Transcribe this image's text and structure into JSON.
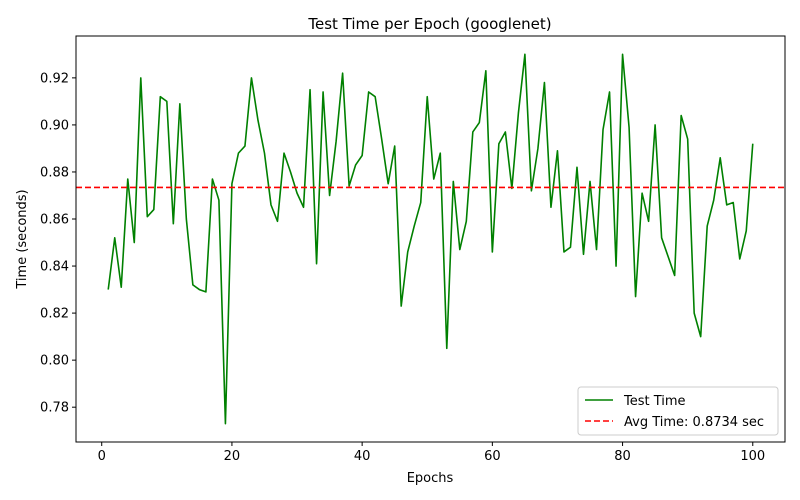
{
  "chart_data": {
    "type": "line",
    "title": "Test Time per Epoch (googlenet)",
    "xlabel": "Epochs",
    "ylabel": "Time (seconds)",
    "xlim": [
      -3.95,
      104.95
    ],
    "ylim": [
      0.7652,
      0.9378
    ],
    "xticks": [
      0,
      20,
      40,
      60,
      80,
      100
    ],
    "xtick_labels": [
      "0",
      "20",
      "40",
      "60",
      "80",
      "100"
    ],
    "yticks": [
      0.78,
      0.8,
      0.82,
      0.84,
      0.86,
      0.88,
      0.9,
      0.92
    ],
    "ytick_labels": [
      "0.78",
      "0.80",
      "0.82",
      "0.84",
      "0.86",
      "0.88",
      "0.90",
      "0.92"
    ],
    "grid": false,
    "legend_position": "lower-right",
    "series": [
      {
        "name": "Test Time",
        "color": "#008000",
        "style": "solid",
        "x": [
          1,
          2,
          3,
          4,
          5,
          6,
          7,
          8,
          9,
          10,
          11,
          12,
          13,
          14,
          15,
          16,
          17,
          18,
          19,
          20,
          21,
          22,
          23,
          24,
          25,
          26,
          27,
          28,
          29,
          30,
          31,
          32,
          33,
          34,
          35,
          36,
          37,
          38,
          39,
          40,
          41,
          42,
          43,
          44,
          45,
          46,
          47,
          48,
          49,
          50,
          51,
          52,
          53,
          54,
          55,
          56,
          57,
          58,
          59,
          60,
          61,
          62,
          63,
          64,
          65,
          66,
          67,
          68,
          69,
          70,
          71,
          72,
          73,
          74,
          75,
          76,
          77,
          78,
          79,
          80,
          81,
          82,
          83,
          84,
          85,
          86,
          87,
          88,
          89,
          90,
          91,
          92,
          93,
          94,
          95,
          96,
          97,
          98,
          99,
          100
        ],
        "y": [
          0.83,
          0.852,
          0.831,
          0.877,
          0.85,
          0.92,
          0.861,
          0.864,
          0.912,
          0.91,
          0.858,
          0.909,
          0.86,
          0.832,
          0.83,
          0.829,
          0.877,
          0.868,
          0.773,
          0.875,
          0.888,
          0.891,
          0.92,
          0.902,
          0.888,
          0.866,
          0.859,
          0.888,
          0.88,
          0.871,
          0.865,
          0.915,
          0.841,
          0.914,
          0.87,
          0.893,
          0.922,
          0.874,
          0.883,
          0.887,
          0.914,
          0.912,
          0.894,
          0.875,
          0.891,
          0.823,
          0.846,
          0.857,
          0.867,
          0.912,
          0.877,
          0.888,
          0.805,
          0.876,
          0.847,
          0.859,
          0.897,
          0.901,
          0.923,
          0.846,
          0.892,
          0.897,
          0.873,
          0.905,
          0.93,
          0.872,
          0.89,
          0.918,
          0.865,
          0.889,
          0.846,
          0.848,
          0.882,
          0.845,
          0.876,
          0.847,
          0.898,
          0.914,
          0.84,
          0.93,
          0.899,
          0.827,
          0.871,
          0.859,
          0.9,
          0.852,
          0.844,
          0.836,
          0.904,
          0.894,
          0.82,
          0.81,
          0.857,
          0.868,
          0.886,
          0.866,
          0.867,
          0.843,
          0.855,
          0.892
        ]
      },
      {
        "name": "Avg Time: 0.8734 sec",
        "color": "#ff0000",
        "style": "dashed",
        "hline": 0.8734
      }
    ]
  }
}
